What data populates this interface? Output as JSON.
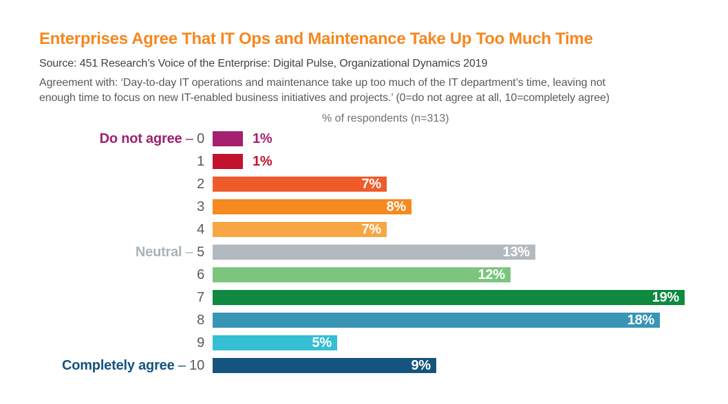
{
  "header": {
    "title": "Enterprises Agree That IT Ops and Maintenance Take Up Too Much Time",
    "title_color": "#F6871F",
    "source": "Source: 451 Research’s Voice of the Enterprise: Digital Pulse, Organizational Dynamics 2019",
    "description": "Agreement with: ‘Day-to-day IT operations and maintenance take up too much of the IT department’s time, leaving not\nenough time to focus on new IT-enabled business initiatives and projects.’ (0=do not agree at all, 10=completely agree)"
  },
  "chart_data": {
    "type": "bar",
    "orientation": "horizontal",
    "title": "Enterprises Agree That IT Ops and Maintenance Take Up Too Much Time",
    "axis_header": "% of respondents (n=313)",
    "unit": "%",
    "xlim": [
      0,
      19
    ],
    "grid": false,
    "legend": false,
    "categories": [
      "0",
      "1",
      "2",
      "3",
      "4",
      "5",
      "6",
      "7",
      "8",
      "9",
      "10"
    ],
    "values": [
      1,
      1,
      7,
      8,
      7,
      13,
      12,
      19,
      18,
      5,
      9
    ],
    "scale_anchors": {
      "0": "Do not agree",
      "5": "Neutral",
      "10": "Completely agree"
    },
    "bars": [
      {
        "score": "0",
        "prefix": "Do not agree",
        "dash": " – ",
        "prefix_color": "#9E2071",
        "value": 1,
        "label": "1%",
        "color": "#A61F70",
        "label_inside": false
      },
      {
        "score": "1",
        "prefix": "",
        "dash": "",
        "prefix_color": "",
        "value": 1,
        "label": "1%",
        "color": "#C2132F",
        "label_inside": false
      },
      {
        "score": "2",
        "prefix": "",
        "dash": "",
        "prefix_color": "",
        "value": 7,
        "label": "7%",
        "color": "#EF5B2B",
        "label_inside": true
      },
      {
        "score": "3",
        "prefix": "",
        "dash": "",
        "prefix_color": "",
        "value": 8,
        "label": "8%",
        "color": "#F6891F",
        "label_inside": true
      },
      {
        "score": "4",
        "prefix": "",
        "dash": "",
        "prefix_color": "",
        "value": 7,
        "label": "7%",
        "color": "#F7A643",
        "label_inside": true
      },
      {
        "score": "5",
        "prefix": "Neutral",
        "dash": " – ",
        "prefix_color": "#A9B3B8",
        "value": 13,
        "label": "13%",
        "color": "#B2BABF",
        "label_inside": true
      },
      {
        "score": "6",
        "prefix": "",
        "dash": "",
        "prefix_color": "",
        "value": 12,
        "label": "12%",
        "color": "#7CC57F",
        "label_inside": true
      },
      {
        "score": "7",
        "prefix": "",
        "dash": "",
        "prefix_color": "",
        "value": 19,
        "label": "19%",
        "color": "#0F8A40",
        "label_inside": true
      },
      {
        "score": "8",
        "prefix": "",
        "dash": "",
        "prefix_color": "",
        "value": 18,
        "label": "18%",
        "color": "#3995B5",
        "label_inside": true
      },
      {
        "score": "9",
        "prefix": "",
        "dash": "",
        "prefix_color": "",
        "value": 5,
        "label": "5%",
        "color": "#35BFD4",
        "label_inside": true
      },
      {
        "score": "10",
        "prefix": "Completely agree",
        "dash": " – ",
        "prefix_color": "#15537F",
        "value": 9,
        "label": "9%",
        "color": "#15547E",
        "label_inside": true
      }
    ]
  }
}
